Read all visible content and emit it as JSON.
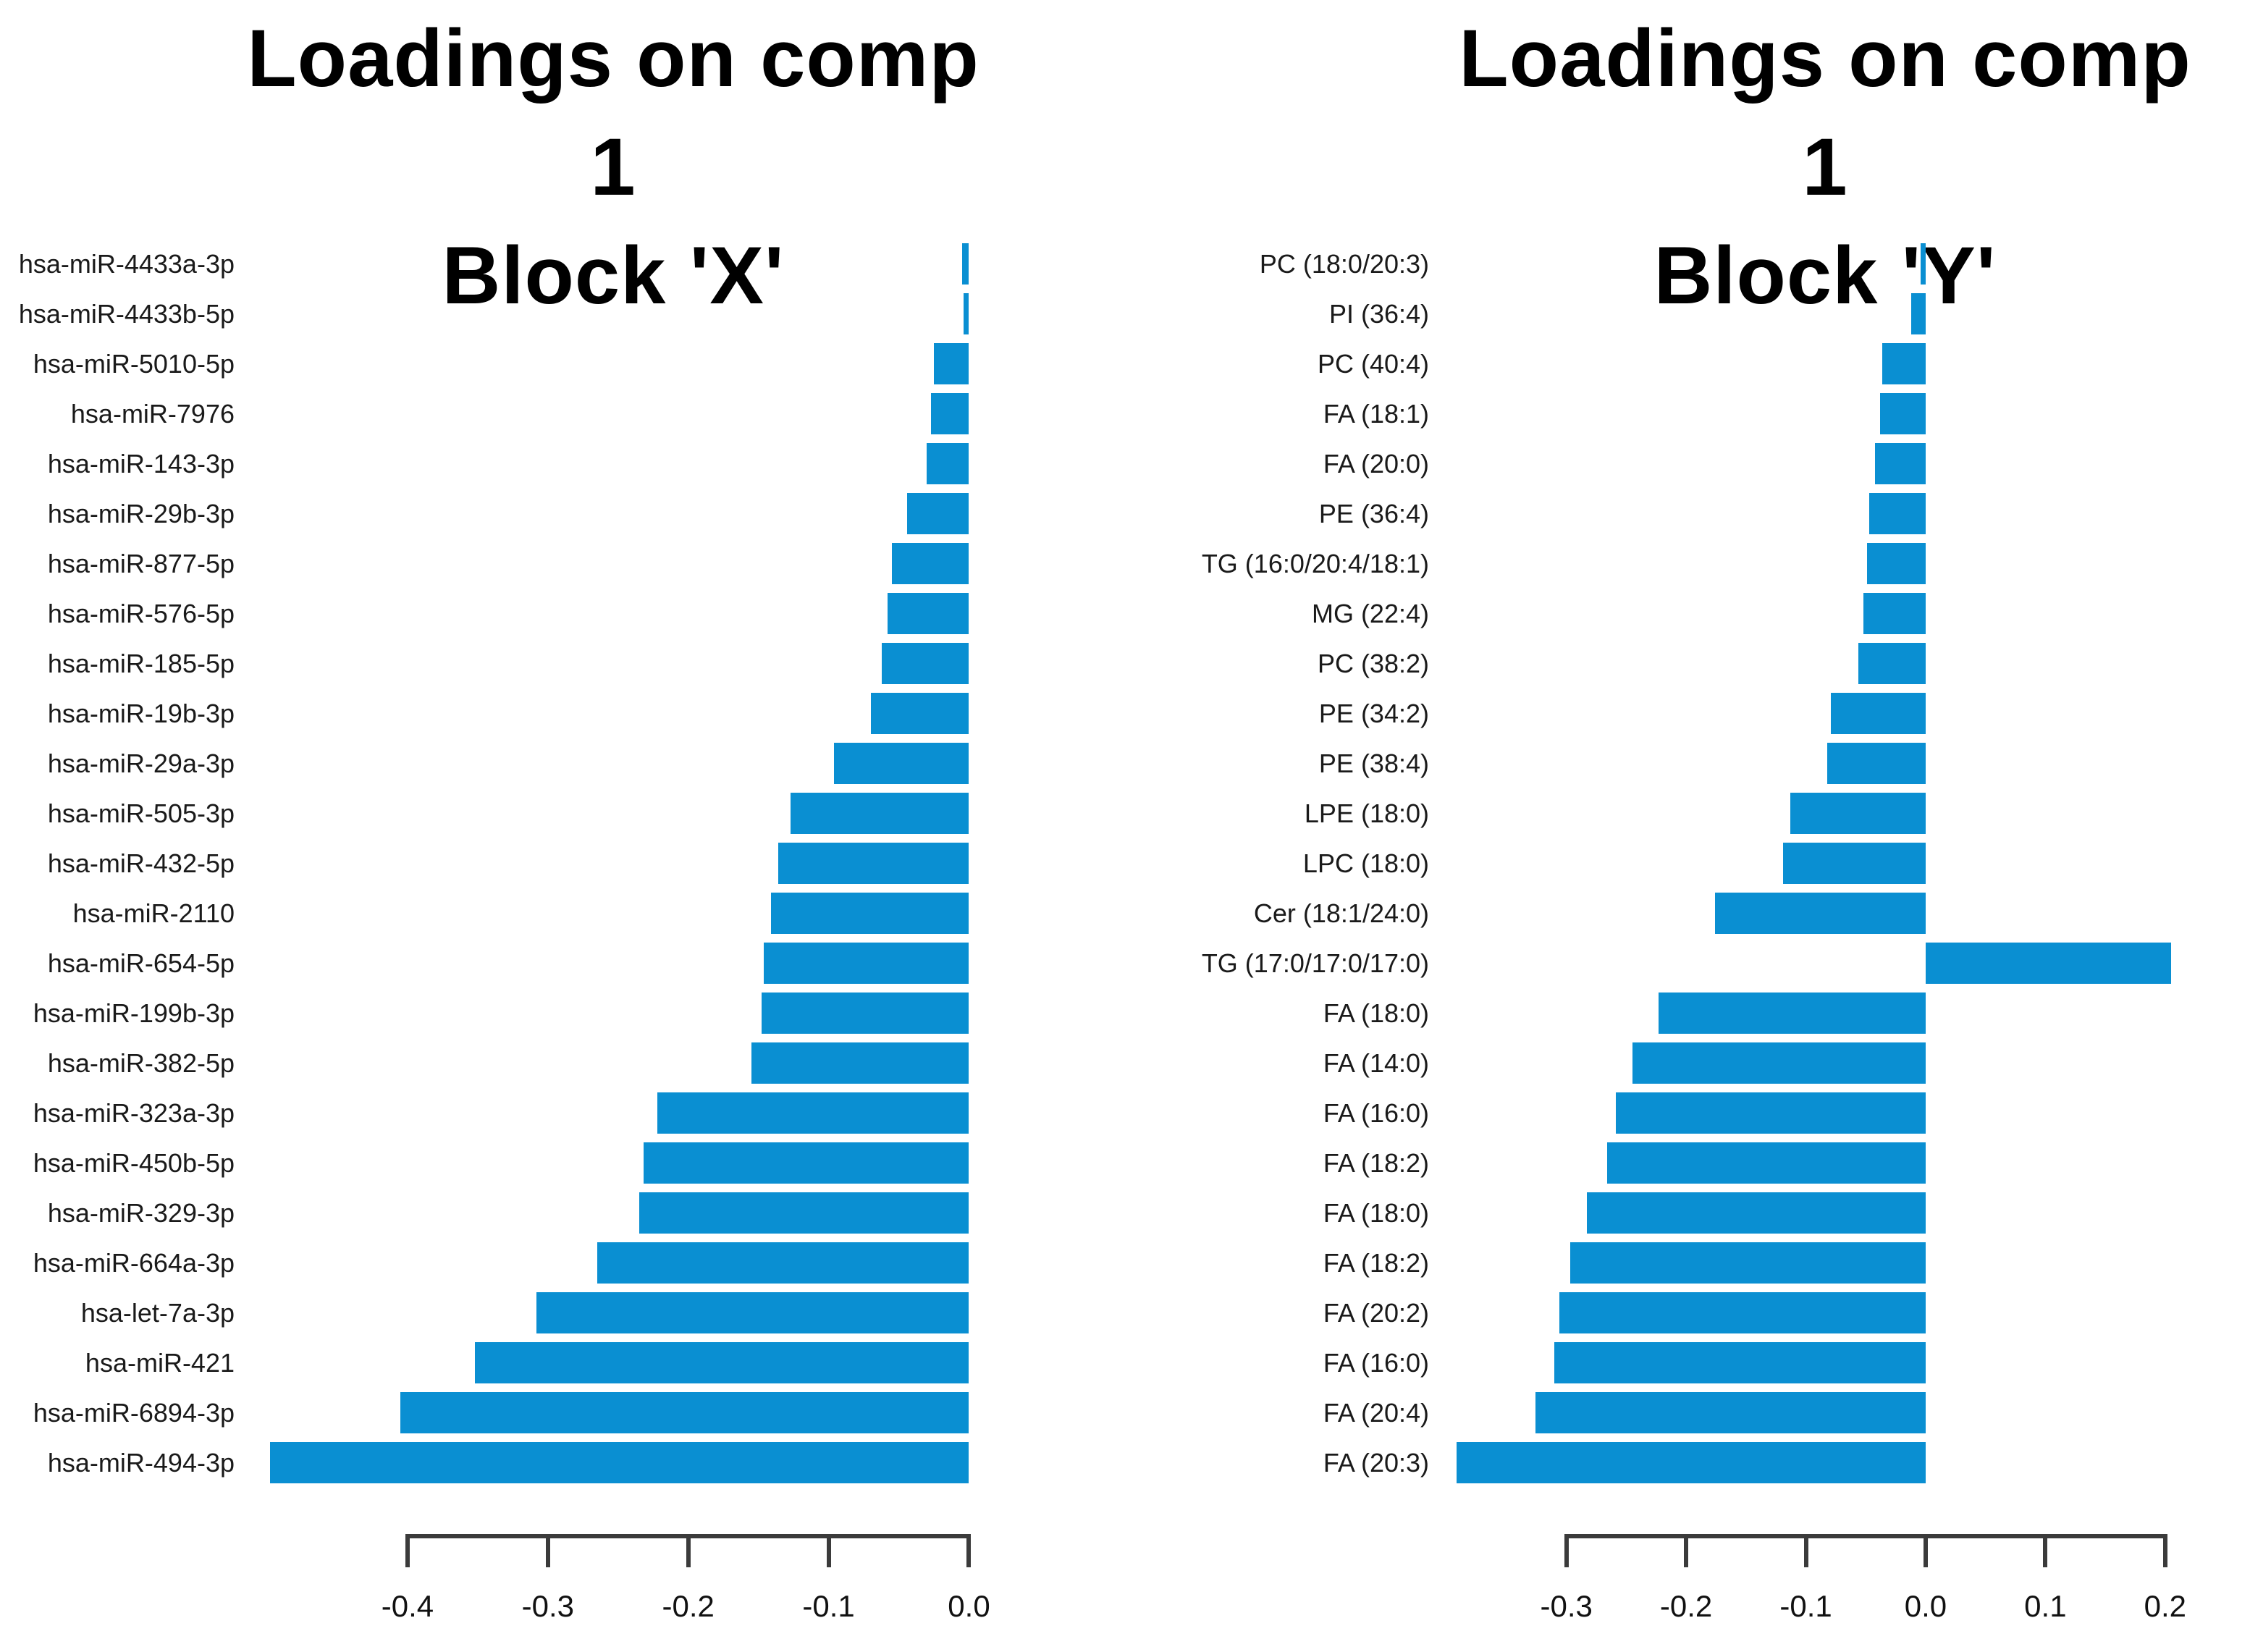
{
  "page": {
    "background": "#ffffff",
    "text_color": "#000000"
  },
  "chart_data": [
    {
      "type": "bar",
      "orientation": "horizontal",
      "title": "Loadings on comp 1",
      "subtitle": "Block 'X'",
      "bar_color": "#0a8fd2",
      "axis_color": "#3b3b3b",
      "grid": false,
      "legend": false,
      "categories": [
        "hsa-miR-4433a-3p",
        "hsa-miR-4433b-5p",
        "hsa-miR-5010-5p",
        "hsa-miR-7976",
        "hsa-miR-143-3p",
        "hsa-miR-29b-3p",
        "hsa-miR-877-5p",
        "hsa-miR-576-5p",
        "hsa-miR-185-5p",
        "hsa-miR-19b-3p",
        "hsa-miR-29a-3p",
        "hsa-miR-505-3p",
        "hsa-miR-432-5p",
        "hsa-miR-2110",
        "hsa-miR-654-5p",
        "hsa-miR-199b-3p",
        "hsa-miR-382-5p",
        "hsa-miR-323a-3p",
        "hsa-miR-450b-5p",
        "hsa-miR-329-3p",
        "hsa-miR-664a-3p",
        "hsa-let-7a-3p",
        "hsa-miR-421",
        "hsa-miR-6894-3p",
        "hsa-miR-494-3p"
      ],
      "values": [
        -0.005,
        -0.004,
        -0.025,
        -0.027,
        -0.03,
        -0.044,
        -0.055,
        -0.058,
        -0.062,
        -0.07,
        -0.096,
        -0.127,
        -0.136,
        -0.141,
        -0.146,
        -0.148,
        -0.155,
        -0.222,
        -0.232,
        -0.235,
        -0.265,
        -0.308,
        -0.352,
        -0.405,
        -0.498
      ],
      "xlabel": "",
      "ylabel": "",
      "xlim": [
        -0.515,
        0.008
      ],
      "xticks": [
        -0.4,
        -0.3,
        -0.2,
        -0.1,
        0.0
      ],
      "xtick_labels": [
        "-0.4",
        "-0.3",
        "-0.2",
        "-0.1",
        "0.0"
      ]
    },
    {
      "type": "bar",
      "orientation": "horizontal",
      "title": "Loadings on comp 1",
      "subtitle": "Block 'Y'",
      "bar_color": "#0a8fd2",
      "axis_color": "#3b3b3b",
      "grid": false,
      "legend": false,
      "categories": [
        "PC (18:0/20:3)",
        "PI (36:4)",
        "PC (40:4)",
        "FA (18:1)",
        "FA (20:0)",
        "PE (36:4)",
        "TG (16:0/20:4/18:1)",
        "MG (22:4)",
        "PC (38:2)",
        "PE (34:2)",
        "PE (38:4)",
        "LPE (18:0)",
        "LPC (18:0)",
        "Cer (18:1/24:0)",
        "TG (17:0/17:0/17:0)",
        "FA (18:0)",
        "FA (14:0)",
        "FA (16:0)",
        "FA (18:2)",
        "FA (18:0)",
        "FA (18:2)",
        "FA (20:2)",
        "FA (16:0)",
        "FA (20:4)",
        "FA (20:3)"
      ],
      "values": [
        -0.004,
        -0.012,
        -0.036,
        -0.038,
        -0.042,
        -0.047,
        -0.049,
        -0.052,
        -0.056,
        -0.079,
        -0.082,
        -0.113,
        -0.119,
        -0.176,
        0.205,
        -0.223,
        -0.245,
        -0.259,
        -0.266,
        -0.283,
        -0.297,
        -0.306,
        -0.31,
        -0.326,
        -0.392
      ],
      "xlabel": "",
      "ylabel": "",
      "xlim": [
        -0.405,
        0.237
      ],
      "xticks": [
        -0.3,
        -0.2,
        -0.1,
        0.0,
        0.1,
        0.2
      ],
      "xtick_labels": [
        "-0.3",
        "-0.2",
        "-0.1",
        "0.0",
        "0.1",
        "0.2"
      ]
    }
  ]
}
